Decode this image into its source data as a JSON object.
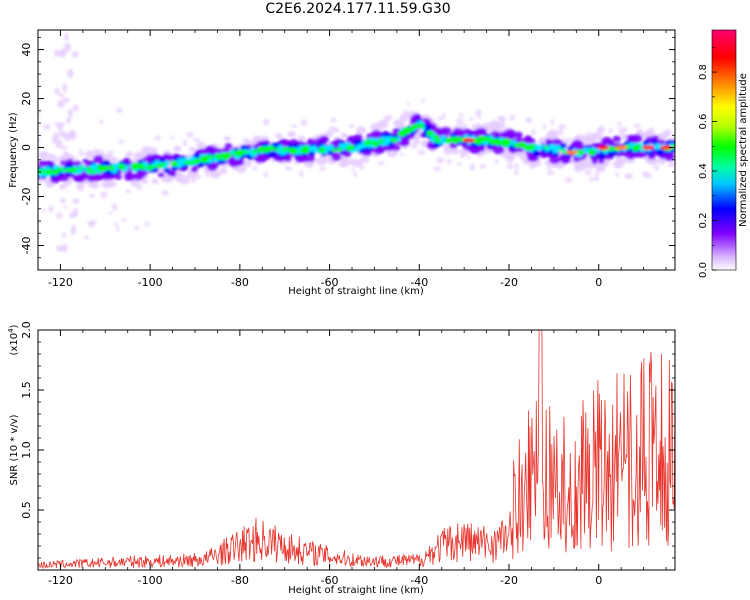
{
  "title": "C2E6.2024.177.11.59.G30",
  "chart_data": [
    {
      "type": "heatmap",
      "xlabel": "Height of straight line (km)",
      "ylabel": "Frequency (Hz)",
      "xlim": [
        -125,
        17
      ],
      "ylim": [
        -50,
        48
      ],
      "xticks": [
        -120,
        -100,
        -80,
        -60,
        -40,
        -20,
        0
      ],
      "yticks": [
        -40,
        -20,
        0,
        20,
        40
      ],
      "ridge": {
        "x": [
          -125,
          -115,
          -105,
          -95,
          -85,
          -75,
          -65,
          -55,
          -45,
          -40,
          -36,
          -30,
          -25,
          -20,
          -15,
          -10,
          -5,
          0,
          5,
          10,
          15
        ],
        "frequency": [
          -10,
          -9,
          -8,
          -7,
          -4,
          -1,
          -1,
          0,
          4,
          10,
          3,
          3,
          3,
          2,
          0,
          -1,
          -2,
          -2,
          0,
          0,
          0
        ]
      },
      "colorbar": {
        "label": "Normalized spectral amplitude",
        "ticks": [
          "0.0",
          "0.2",
          "0.4",
          "0.6",
          "0.8"
        ],
        "range": [
          0,
          0.97
        ],
        "colors": [
          "#ffffff",
          "#e6ccff",
          "#8000ff",
          "#0000ff",
          "#00e6ff",
          "#00ff80",
          "#00ff00",
          "#c0ff00",
          "#ffff00",
          "#ff8000",
          "#ff0000",
          "#ff0080"
        ]
      }
    },
    {
      "type": "line",
      "xlabel": "Height of straight line (km)",
      "ylabel": "SNR (10 * v/v)",
      "y_multiplier": "(x10",
      "y_multiplier_exp": "4",
      "xlim": [
        -125,
        17
      ],
      "ylim": [
        0,
        2.0
      ],
      "xticks": [
        -120,
        -100,
        -80,
        -60,
        -40,
        -20,
        0
      ],
      "yticks": [
        "0.5",
        "1.0",
        "1.5",
        "2.0"
      ],
      "color": "#e8342c",
      "envelope": {
        "x": [
          -125,
          -112,
          -105,
          -95,
          -88,
          -84,
          -80,
          -76,
          -72,
          -68,
          -64,
          -60,
          -55,
          -50,
          -45,
          -40,
          -35,
          -30,
          -28,
          -24,
          -20,
          -18,
          -15,
          -13,
          -11,
          -9,
          -5,
          0,
          5,
          10,
          15,
          17
        ],
        "y": [
          0.07,
          0.1,
          0.12,
          0.13,
          0.15,
          0.25,
          0.35,
          0.45,
          0.38,
          0.3,
          0.25,
          0.2,
          0.15,
          0.13,
          0.13,
          0.14,
          0.35,
          0.45,
          0.4,
          0.38,
          0.5,
          0.7,
          1.05,
          1.3,
          1.0,
          0.9,
          0.85,
          1.0,
          1.05,
          1.15,
          1.2,
          1.1
        ]
      }
    }
  ]
}
